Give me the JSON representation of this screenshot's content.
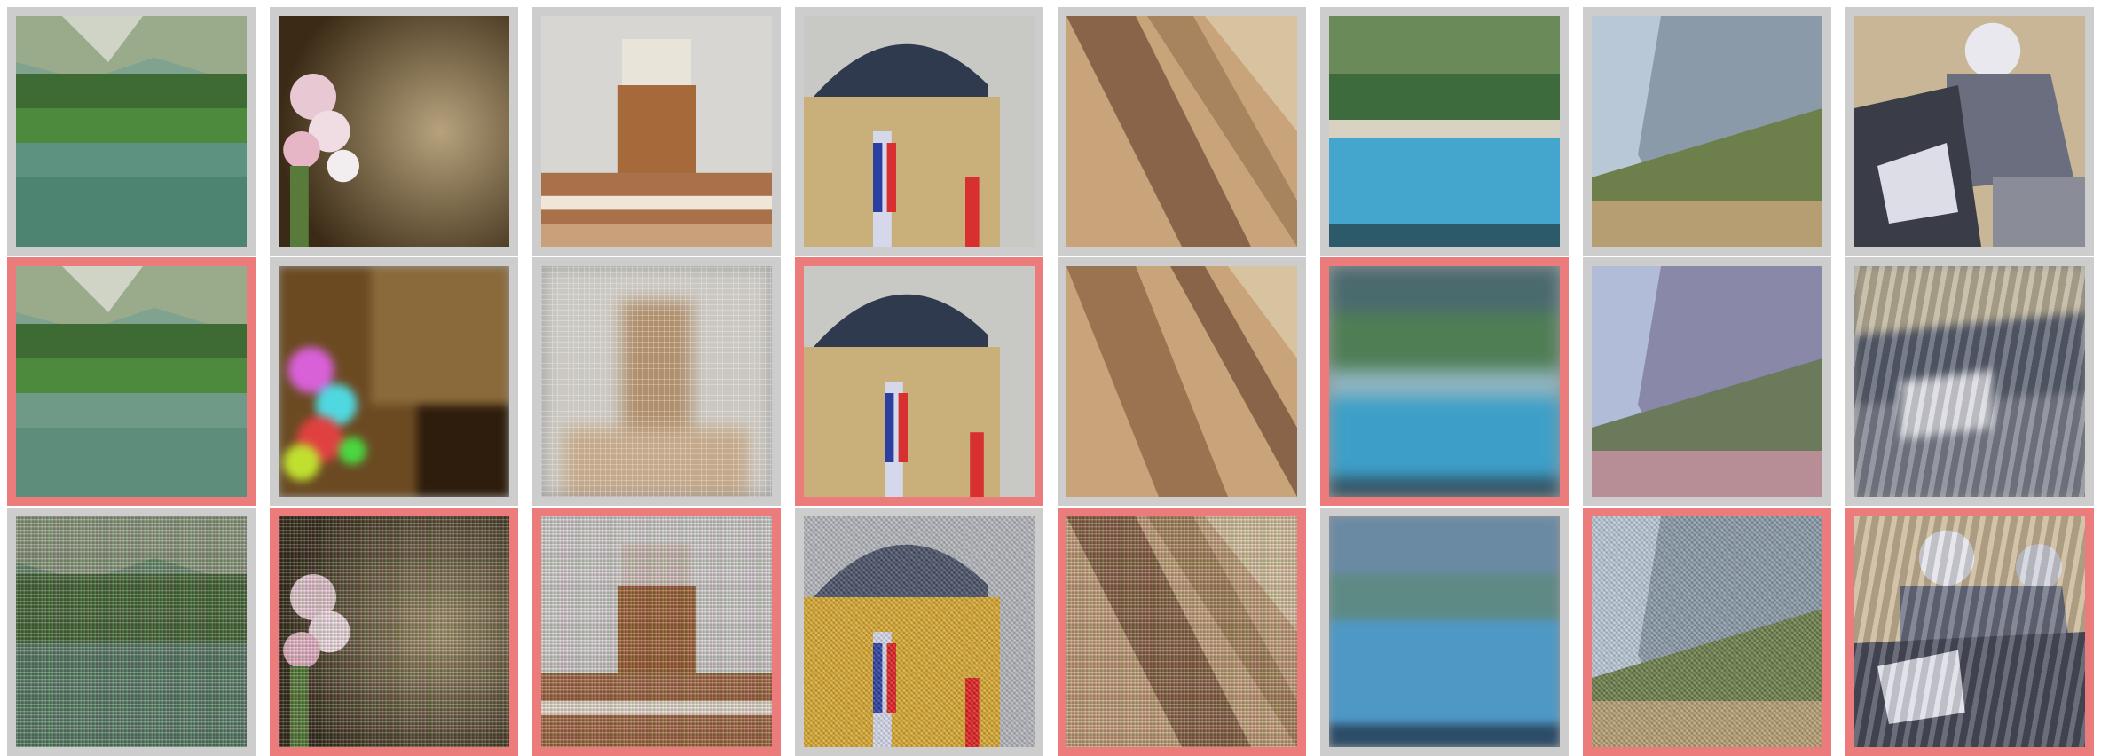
{
  "grid": {
    "rows": 3,
    "cols": 8,
    "colors": {
      "normal_border": "#cdcdcd",
      "flagged_border": "#ec7c7c"
    },
    "flags": [
      [
        false,
        false,
        false,
        false,
        false,
        false,
        false,
        false
      ],
      [
        true,
        false,
        false,
        true,
        false,
        true,
        false,
        false
      ],
      [
        false,
        true,
        true,
        false,
        true,
        false,
        true,
        true
      ]
    ],
    "column_subjects": [
      "lake",
      "flower",
      "tower",
      "building-flag",
      "mosaic",
      "shore",
      "tree-cliff",
      "scooter-rider"
    ],
    "row_variants": [
      "original",
      "blurred-distorted",
      "noisy"
    ]
  }
}
